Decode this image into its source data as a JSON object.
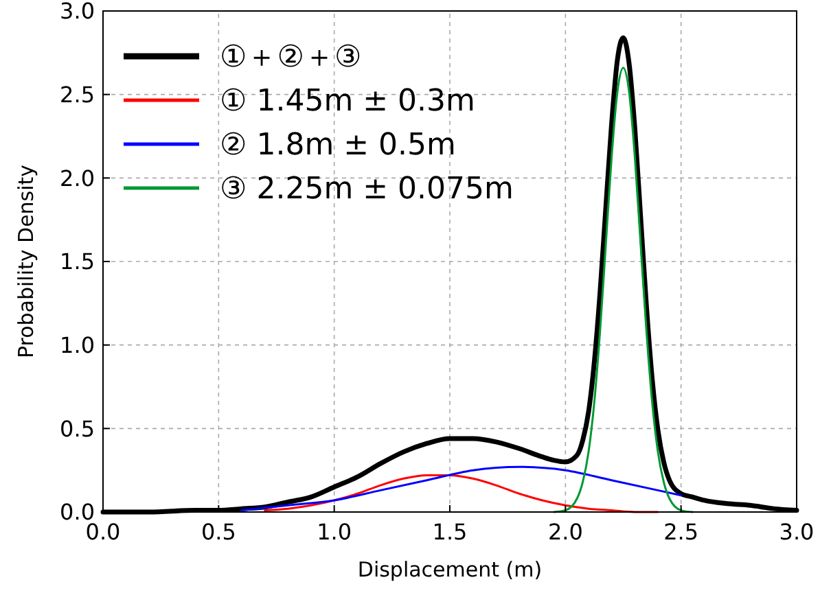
{
  "chart_data": {
    "type": "line",
    "xlabel": "Displacement (m)",
    "ylabel": "Probability Density",
    "xlim": [
      0,
      3
    ],
    "ylim": [
      0,
      3
    ],
    "xticks": [
      {
        "value": 0,
        "label": "0.0"
      },
      {
        "value": 0.5,
        "label": "0.5"
      },
      {
        "value": 1,
        "label": "1.0"
      },
      {
        "value": 1.5,
        "label": "1.5"
      },
      {
        "value": 2,
        "label": "2.0"
      },
      {
        "value": 2.5,
        "label": "2.5"
      },
      {
        "value": 3,
        "label": "3.0"
      }
    ],
    "yticks": [
      {
        "value": 0,
        "label": "0.0"
      },
      {
        "value": 0.5,
        "label": "0.5"
      },
      {
        "value": 1,
        "label": "1.0"
      },
      {
        "value": 1.5,
        "label": "1.5"
      },
      {
        "value": 2,
        "label": "2.0"
      },
      {
        "value": 2.5,
        "label": "2.5"
      },
      {
        "value": 3,
        "label": "3.0"
      }
    ],
    "grid": true,
    "legend": "top left",
    "marker": "none",
    "line_style": "solid",
    "series": [
      {
        "name": "①＋②＋③",
        "color": "#000000",
        "x": [
          0,
          0.2,
          0.4,
          0.5,
          0.6,
          0.7,
          0.8,
          0.9,
          1.0,
          1.1,
          1.2,
          1.3,
          1.4,
          1.5,
          1.6,
          1.7,
          1.8,
          1.9,
          1.95,
          2.0,
          2.05,
          2.075,
          2.1,
          2.125,
          2.15,
          2.175,
          2.2,
          2.225,
          2.25,
          2.275,
          2.3,
          2.325,
          2.35,
          2.375,
          2.4,
          2.425,
          2.45,
          2.5,
          2.55,
          2.6,
          2.7,
          2.8,
          2.9,
          3.0
        ],
        "values": [
          0,
          0,
          0.01,
          0.01,
          0.02,
          0.03,
          0.06,
          0.09,
          0.15,
          0.21,
          0.29,
          0.36,
          0.41,
          0.44,
          0.44,
          0.42,
          0.38,
          0.33,
          0.31,
          0.3,
          0.34,
          0.43,
          0.6,
          0.9,
          1.32,
          1.83,
          2.33,
          2.71,
          2.84,
          2.69,
          2.3,
          1.77,
          1.24,
          0.8,
          0.49,
          0.3,
          0.19,
          0.11,
          0.09,
          0.07,
          0.05,
          0.04,
          0.02,
          0.01
        ]
      },
      {
        "name": "① 1.45m ± 0.3m",
        "color": "#ff0000",
        "x": [
          0.7,
          0.8,
          0.9,
          1.0,
          1.1,
          1.2,
          1.3,
          1.4,
          1.5,
          1.6,
          1.7,
          1.8,
          1.9,
          2.0,
          2.1,
          2.2,
          2.3,
          2.4
        ],
        "values": [
          0.01,
          0.02,
          0.04,
          0.07,
          0.11,
          0.16,
          0.2,
          0.22,
          0.22,
          0.2,
          0.16,
          0.11,
          0.07,
          0.04,
          0.02,
          0.01,
          0,
          0
        ]
      },
      {
        "name": "② 1.8m ± 0.5m",
        "color": "#0000ff",
        "x": [
          0.6,
          0.8,
          1.0,
          1.2,
          1.4,
          1.6,
          1.8,
          2.0,
          2.2,
          2.4,
          2.5
        ],
        "values": [
          0.01,
          0.04,
          0.07,
          0.13,
          0.19,
          0.25,
          0.27,
          0.25,
          0.19,
          0.13,
          0.1
        ]
      },
      {
        "name": "③ 2.25m ± 0.075m",
        "color": "#009933",
        "x": [
          1.95,
          2.0,
          2.05,
          2.075,
          2.1,
          2.125,
          2.15,
          2.175,
          2.2,
          2.225,
          2.25,
          2.275,
          2.3,
          2.325,
          2.35,
          2.375,
          2.4,
          2.425,
          2.45,
          2.5,
          2.55
        ],
        "values": [
          0,
          0.01,
          0.08,
          0.18,
          0.36,
          0.66,
          1.09,
          1.61,
          2.13,
          2.52,
          2.66,
          2.52,
          2.13,
          1.61,
          1.09,
          0.66,
          0.36,
          0.18,
          0.08,
          0.01,
          0
        ]
      }
    ]
  }
}
